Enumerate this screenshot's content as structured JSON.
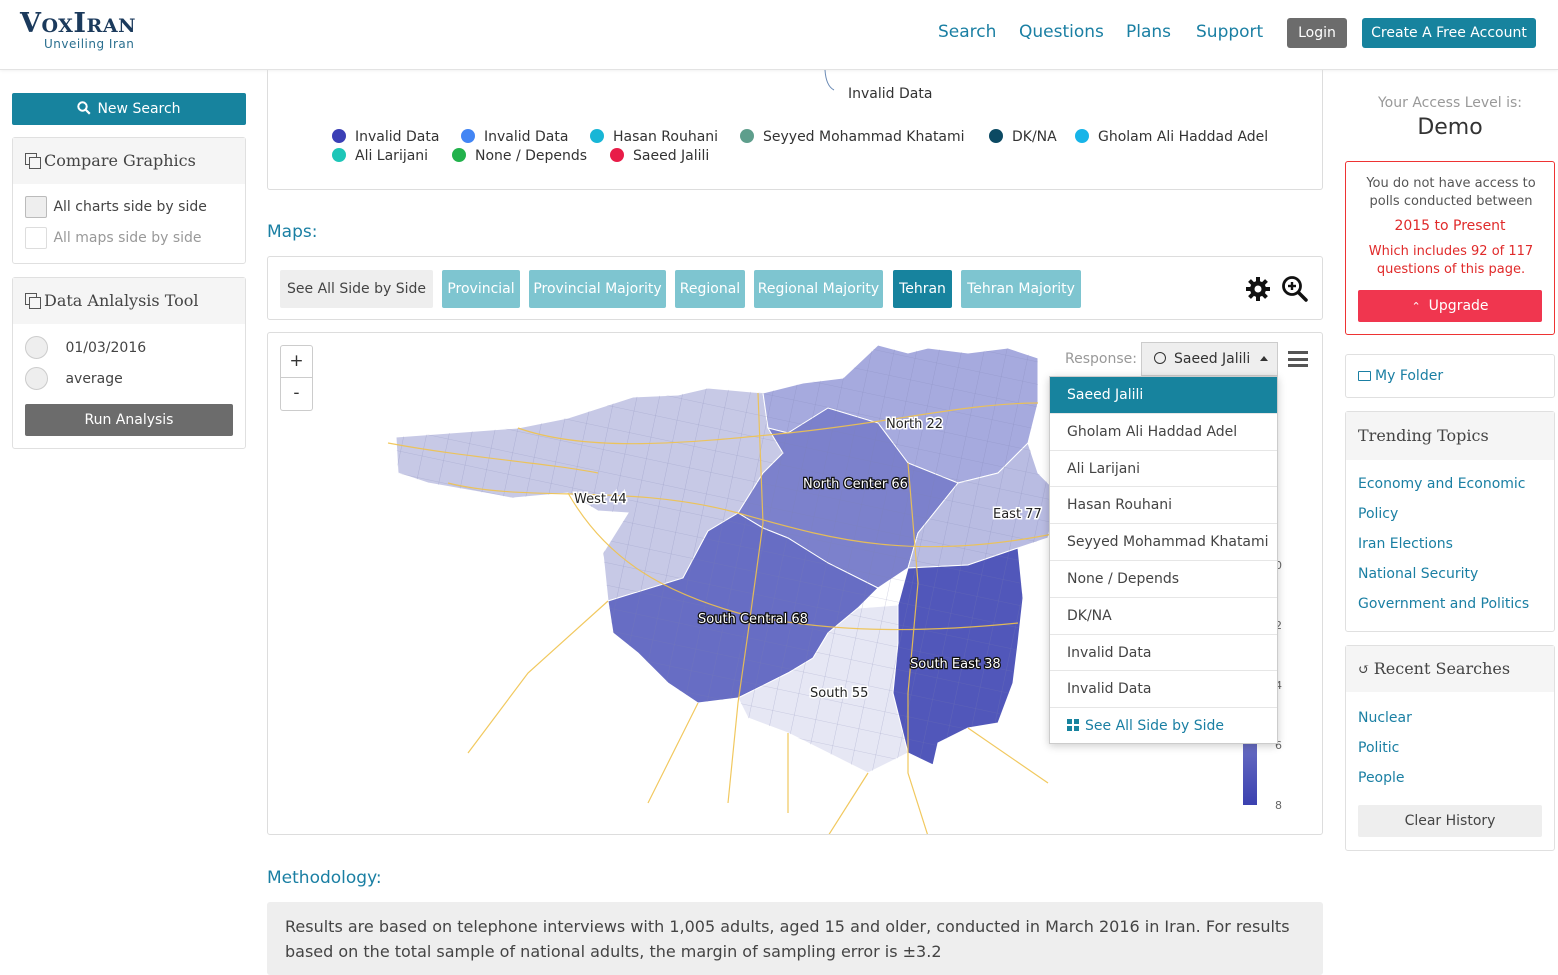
{
  "header": {
    "brand": "VoxIran",
    "tagline": "Unveiling Iran",
    "nav": [
      "Search",
      "Questions",
      "Plans",
      "Support"
    ],
    "login_label": "Login",
    "create_label": "Create A Free Account"
  },
  "sidebar": {
    "new_search_label": "New Search",
    "compare": {
      "title": "Compare Graphics",
      "options": [
        "All charts side by side",
        "All maps side by side"
      ]
    },
    "analysis": {
      "title": "Data Anlalysis Tool",
      "options": [
        "01/03/2016",
        "average"
      ],
      "run_label": "Run Analysis"
    }
  },
  "legend": {
    "leader_label": "Invalid Data",
    "items": [
      {
        "label": "Invalid Data",
        "color": "#3b3fb5"
      },
      {
        "label": "Invalid Data",
        "color": "#4285f4"
      },
      {
        "label": "Hasan Rouhani",
        "color": "#18b6d6"
      },
      {
        "label": "Seyyed Mohammad Khatami",
        "color": "#5e9e8c"
      },
      {
        "label": "DK/NA",
        "color": "#0c4a63"
      },
      {
        "label": "Gholam Ali Haddad Adel",
        "color": "#17b4e8"
      },
      {
        "label": "Ali Larijani",
        "color": "#1dc6b8"
      },
      {
        "label": "None / Depends",
        "color": "#22b24c"
      },
      {
        "label": "Saeed Jalili",
        "color": "#e81c48"
      }
    ]
  },
  "maps": {
    "title": "Maps:",
    "tabs": [
      {
        "label": "See All Side by Side",
        "state": "plain"
      },
      {
        "label": "Provincial",
        "state": "normal"
      },
      {
        "label": "Provincial Majority",
        "state": "normal"
      },
      {
        "label": "Regional",
        "state": "normal"
      },
      {
        "label": "Regional Majority",
        "state": "normal"
      },
      {
        "label": "Tehran",
        "state": "active"
      },
      {
        "label": "Tehran Majority",
        "state": "normal"
      }
    ],
    "zoom_in": "+",
    "zoom_out": "-",
    "response_label": "Response:",
    "response_value": "Saeed Jalili",
    "regions": [
      {
        "name": "North",
        "value": 22
      },
      {
        "name": "North Center",
        "value": 66
      },
      {
        "name": "West",
        "value": 44
      },
      {
        "name": "East",
        "value": 77
      },
      {
        "name": "South Central",
        "value": 68
      },
      {
        "name": "South East",
        "value": 38
      },
      {
        "name": "South",
        "value": 55
      }
    ],
    "scale_ticks": [
      "0",
      "2",
      "4",
      "6",
      "8"
    ],
    "dropdown": [
      "Saeed Jalili",
      "Gholam Ali Haddad Adel",
      "Ali Larijani",
      "Hasan Rouhani",
      "Seyyed Mohammad Khatami",
      "None / Depends",
      "DK/NA",
      "Invalid Data",
      "Invalid Data"
    ],
    "see_all_label": "See All Side by Side"
  },
  "methodology": {
    "title": "Methodology:",
    "text": "Results are based on telephone interviews with 1,005 adults, aged 15 and older, conducted in March 2016 in Iran. For results based on the total sample of national adults, the margin of sampling error is ±3.2"
  },
  "right": {
    "access_label": "Your Access Level is:",
    "access_level": "Demo",
    "warning_text": "You do not have access to polls conducted between",
    "warning_range": "2015 to Present",
    "warning_detail": "Which includes 92 of 117 questions of this page.",
    "upgrade_label": "Upgrade",
    "folder_label": "My Folder",
    "trending_title": "Trending Topics",
    "trending": [
      "Economy and Economic",
      "Policy",
      "Iran Elections",
      "National Security",
      "Government and Politics"
    ],
    "recent_title": "Recent Searches",
    "recent": [
      "Nuclear",
      "Politic",
      "People"
    ],
    "clear_label": "Clear History"
  }
}
